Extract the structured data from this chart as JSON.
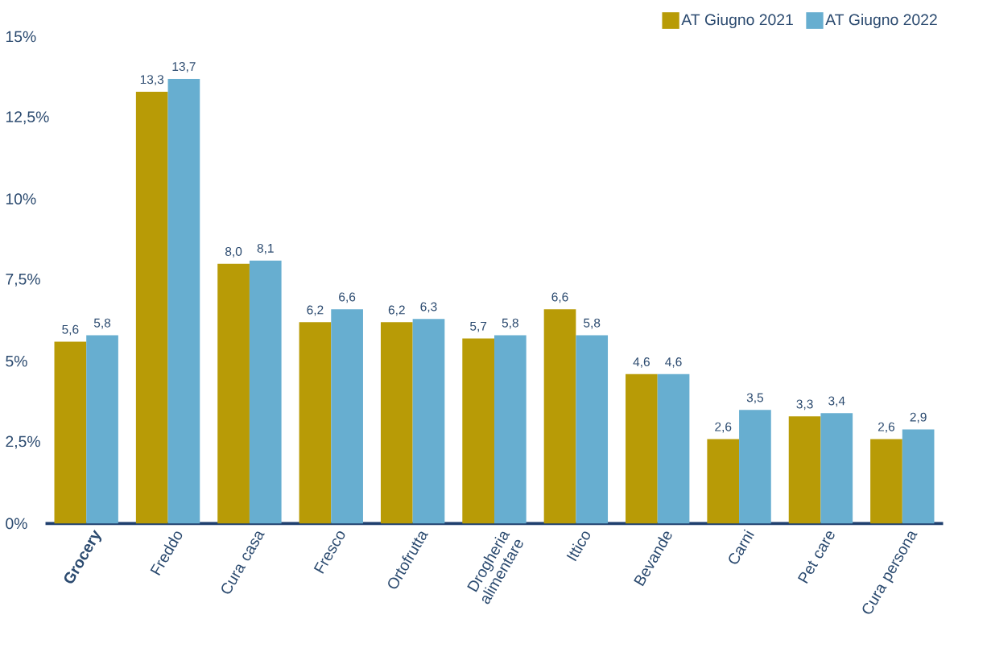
{
  "chart_data": {
    "type": "bar",
    "categories": [
      "**Grocery**",
      "Freddo",
      "Cura casa",
      "Fresco",
      "Ortofrutta",
      "Drogheria alimentare",
      "Ittico",
      "Bevande",
      "Carni",
      "Pet care",
      "Cura persona"
    ],
    "series": [
      {
        "name": "AT Giugno 2021",
        "color": "#b89b06",
        "values": [
          5.6,
          13.3,
          8.0,
          6.2,
          6.2,
          5.7,
          6.6,
          4.6,
          2.6,
          3.3,
          2.6
        ],
        "value_labels": [
          "5,6",
          "13,3",
          "8,0",
          "6,2",
          "6,2",
          "5,7",
          "6,6",
          "4,6",
          "2,6",
          "3,3",
          "2,6"
        ]
      },
      {
        "name": "AT Giugno 2022",
        "color": "#67aed0",
        "values": [
          5.8,
          13.7,
          8.1,
          6.6,
          6.3,
          5.8,
          5.8,
          4.6,
          3.5,
          3.4,
          2.9
        ],
        "value_labels": [
          "5,8",
          "13,7",
          "8,1",
          "6,6",
          "6,3",
          "5,8",
          "5,8",
          "4,6",
          "3,5",
          "3,4",
          "2,9"
        ]
      }
    ],
    "ylim": [
      0,
      15
    ],
    "yticks": [
      {
        "value": 0,
        "label": "0%"
      },
      {
        "value": 2.5,
        "label": "2,5%"
      },
      {
        "value": 5,
        "label": "5%"
      },
      {
        "value": 7.5,
        "label": "7,5%"
      },
      {
        "value": 10,
        "label": "10%"
      },
      {
        "value": 12.5,
        "label": "12,5%"
      },
      {
        "value": 15,
        "label": "15%"
      }
    ],
    "legend": "top right"
  }
}
